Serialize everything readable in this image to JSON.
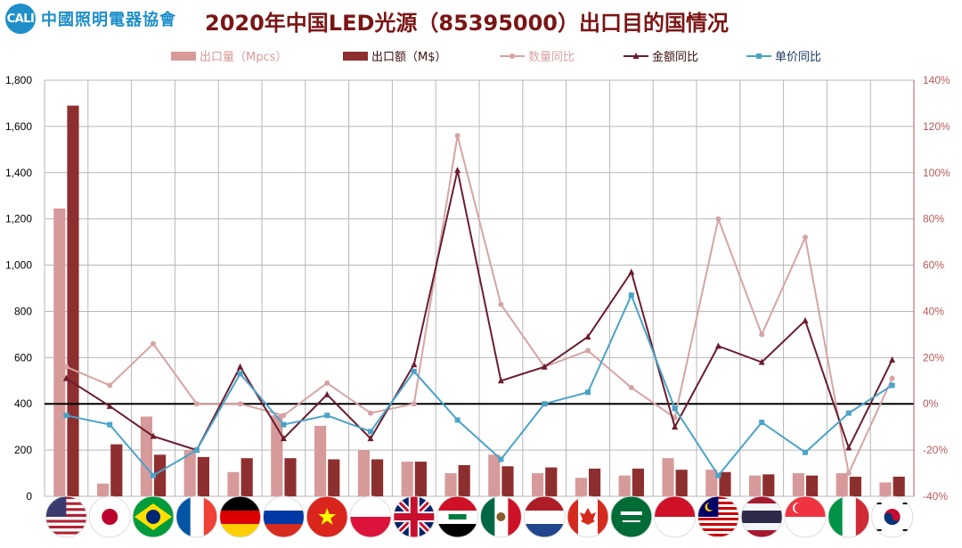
{
  "header": {
    "logo_text": "中國照明電器協會",
    "logo_badge": "CALI",
    "title": "2020年中国LED光源（85395000）出口目的国情况"
  },
  "colors": {
    "qty_bar": "#d79a9a",
    "amt_bar": "#8e2f2f",
    "qty_line": "#d6a4a4",
    "amt_line": "#6b1d2e",
    "price_line": "#4aa3c8",
    "zero_line": "#000000",
    "grid": "#b7b7b7",
    "axis_text": "#000000",
    "axis_text_right": "#b85a5a"
  },
  "chart_data": {
    "type": "bar",
    "categories": [
      "United States",
      "Japan",
      "Brazil",
      "France",
      "Germany",
      "Russia",
      "Vietnam",
      "Poland",
      "United Kingdom",
      "Iraq",
      "Mexico",
      "Netherlands",
      "Canada",
      "Saudi Arabia",
      "Indonesia",
      "Malaysia",
      "Thailand",
      "Singapore",
      "Italy",
      "South Korea"
    ],
    "category_icons": [
      "flag-us",
      "flag-jp",
      "flag-br",
      "flag-fr",
      "flag-de",
      "flag-ru",
      "flag-vn",
      "flag-pl",
      "flag-gb",
      "flag-iq",
      "flag-mx",
      "flag-nl",
      "flag-ca",
      "flag-sa",
      "flag-id",
      "flag-my",
      "flag-th",
      "flag-sg",
      "flag-it",
      "flag-kr"
    ],
    "series": [
      {
        "name": "出口量（Mpcs）",
        "kind": "bar",
        "axis": "left",
        "values": [
          1245,
          55,
          345,
          200,
          105,
          350,
          305,
          200,
          150,
          100,
          180,
          100,
          80,
          90,
          165,
          115,
          90,
          100,
          100,
          60
        ]
      },
      {
        "name": "出口额（M$）",
        "kind": "bar",
        "axis": "left",
        "values": [
          1690,
          225,
          180,
          170,
          165,
          165,
          160,
          160,
          150,
          135,
          130,
          125,
          120,
          120,
          115,
          105,
          95,
          90,
          85,
          85
        ]
      },
      {
        "name": "数量同比",
        "kind": "line",
        "axis": "right",
        "marker": "circle",
        "values": [
          16,
          8,
          26,
          0,
          0,
          -5,
          9,
          -4,
          0,
          116,
          43,
          16,
          23,
          7,
          -6,
          80,
          30,
          72,
          -30,
          11
        ]
      },
      {
        "name": "金额同比",
        "kind": "line",
        "axis": "right",
        "marker": "triangle",
        "values": [
          11,
          -1,
          -14,
          -20,
          16,
          -15,
          4,
          -15,
          17,
          101,
          10,
          16,
          29,
          57,
          -10,
          25,
          18,
          36,
          -19,
          19
        ]
      },
      {
        "name": "单价同比",
        "kind": "line",
        "axis": "right",
        "marker": "square",
        "values": [
          -5,
          -9,
          -31,
          -20,
          13,
          -9,
          -5,
          -12,
          14,
          -7,
          -24,
          0,
          5,
          47,
          -2,
          -31,
          -8,
          -21,
          -4,
          8
        ]
      }
    ],
    "y_left": {
      "min": 0,
      "max": 1800,
      "step": 200,
      "tick_labels": [
        "0",
        "200",
        "400",
        "600",
        "800",
        "1,000",
        "1,200",
        "1,400",
        "1,600",
        "1,800"
      ]
    },
    "y_right": {
      "min": -40,
      "max": 140,
      "step": 20,
      "tick_labels": [
        "-40%",
        "-20%",
        "0%",
        "20%",
        "40%",
        "60%",
        "80%",
        "100%",
        "120%",
        "140%"
      ]
    },
    "grid": true,
    "legend_position": "top"
  }
}
